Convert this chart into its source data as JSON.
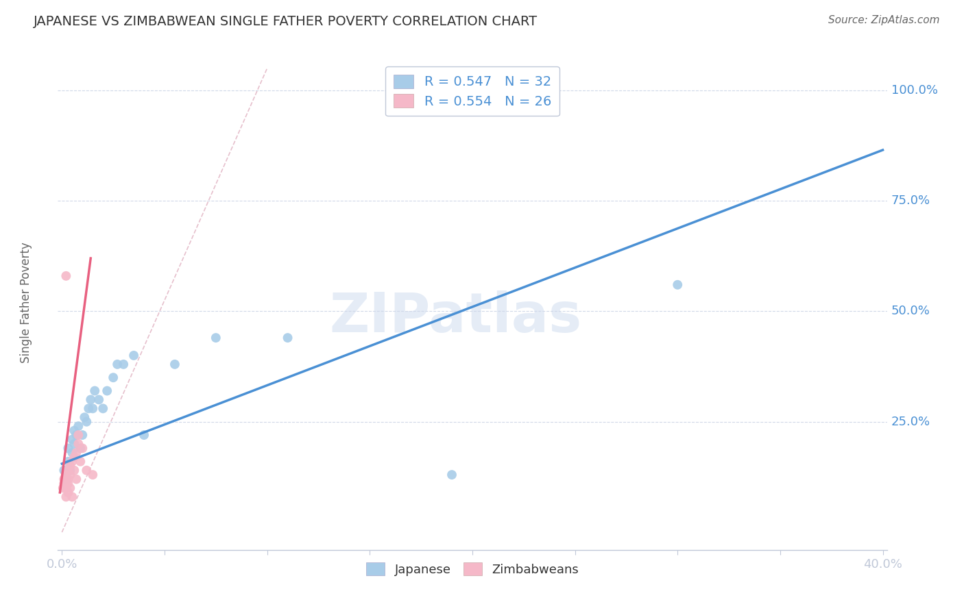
{
  "title": "JAPANESE VS ZIMBABWEAN SINGLE FATHER POVERTY CORRELATION CHART",
  "source": "Source: ZipAtlas.com",
  "ylabel": "Single Father Poverty",
  "watermark": "ZIPatlas",
  "R_blue": 0.547,
  "N_blue": 32,
  "R_pink": 0.554,
  "N_pink": 26,
  "xlim": [
    -0.002,
    0.402
  ],
  "ylim": [
    -0.04,
    1.08
  ],
  "xtick_vals": [
    0.0,
    0.05,
    0.1,
    0.15,
    0.2,
    0.25,
    0.3,
    0.35,
    0.4
  ],
  "xtick_label_show": [
    0.0,
    0.4
  ],
  "ytick_vals_right": [
    1.0,
    0.75,
    0.5,
    0.25
  ],
  "ytick_labels_right": [
    "100.0%",
    "75.0%",
    "50.0%",
    "25.0%"
  ],
  "color_blue": "#a8cce8",
  "color_pink": "#f5b8c8",
  "color_blue_line": "#4a90d4",
  "color_pink_line": "#e86080",
  "color_diag_dashed": "#e0b0c0",
  "title_color": "#333333",
  "source_color": "#666666",
  "right_label_color": "#4a90d4",
  "legend_R_color": "#4a90d4",
  "grid_color": "#d0d8e8",
  "axis_color": "#c0c8d8",
  "japanese_x": [
    0.001,
    0.002,
    0.003,
    0.003,
    0.004,
    0.005,
    0.005,
    0.006,
    0.006,
    0.007,
    0.008,
    0.009,
    0.01,
    0.011,
    0.012,
    0.013,
    0.014,
    0.015,
    0.016,
    0.018,
    0.02,
    0.022,
    0.025,
    0.027,
    0.03,
    0.035,
    0.04,
    0.055,
    0.075,
    0.11,
    0.19,
    0.3
  ],
  "japanese_y": [
    0.14,
    0.12,
    0.16,
    0.19,
    0.14,
    0.18,
    0.21,
    0.2,
    0.23,
    0.22,
    0.24,
    0.19,
    0.22,
    0.26,
    0.25,
    0.28,
    0.3,
    0.28,
    0.32,
    0.3,
    0.28,
    0.32,
    0.35,
    0.38,
    0.38,
    0.4,
    0.22,
    0.38,
    0.44,
    0.44,
    0.13,
    0.56
  ],
  "zimbabwean_x": [
    0.0005,
    0.001,
    0.001,
    0.002,
    0.002,
    0.002,
    0.003,
    0.003,
    0.003,
    0.003,
    0.004,
    0.004,
    0.004,
    0.005,
    0.005,
    0.006,
    0.006,
    0.007,
    0.007,
    0.008,
    0.008,
    0.009,
    0.01,
    0.012,
    0.015,
    0.002
  ],
  "zimbabwean_y": [
    0.1,
    0.11,
    0.12,
    0.08,
    0.13,
    0.1,
    0.09,
    0.11,
    0.14,
    0.12,
    0.1,
    0.15,
    0.13,
    0.08,
    0.16,
    0.14,
    0.17,
    0.12,
    0.18,
    0.2,
    0.22,
    0.16,
    0.19,
    0.14,
    0.13,
    0.58
  ],
  "blue_line_x": [
    0.0,
    0.4
  ],
  "blue_line_y": [
    0.155,
    0.865
  ],
  "pink_line_x": [
    -0.001,
    0.014
  ],
  "pink_line_y": [
    0.09,
    0.62
  ],
  "diag_line_x": [
    0.0,
    0.1
  ],
  "diag_line_y": [
    0.0,
    1.05
  ]
}
